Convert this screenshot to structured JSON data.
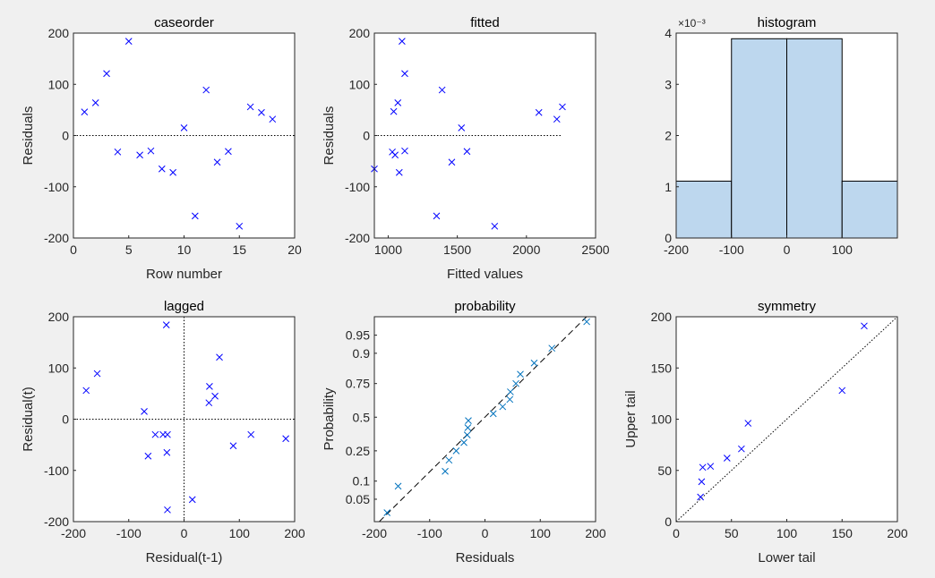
{
  "chart_data": [
    {
      "id": "caseorder",
      "type": "scatter",
      "title": "caseorder",
      "xlabel": "Row number",
      "ylabel": "Residuals",
      "xlim": [
        0,
        20
      ],
      "ylim": [
        -200,
        200
      ],
      "xticks": [
        0,
        5,
        10,
        15,
        20
      ],
      "yticks": [
        -200,
        -100,
        0,
        100,
        200
      ],
      "reference_line": {
        "type": "horizontal",
        "y": 0,
        "style": "dotted"
      },
      "x": [
        1,
        2,
        3,
        4,
        5,
        6,
        7,
        8,
        9,
        10,
        11,
        12,
        13,
        14,
        15,
        16,
        17,
        18
      ],
      "y": [
        46,
        64,
        121,
        -32,
        184,
        -38,
        -30,
        -65,
        -72,
        15,
        -157,
        89,
        -52,
        -31,
        -177,
        56,
        45,
        32
      ]
    },
    {
      "id": "fitted",
      "type": "scatter",
      "title": "fitted",
      "xlabel": "Fitted values",
      "ylabel": "Residuals",
      "xlim": [
        900,
        2500
      ],
      "ylim": [
        -200,
        200
      ],
      "xticks": [
        1000,
        1500,
        2000,
        2500
      ],
      "yticks": [
        -200,
        -100,
        0,
        100,
        200
      ],
      "reference_line": {
        "type": "horizontal",
        "y": 0,
        "x_range": [
          900,
          2260
        ],
        "style": "dotted"
      },
      "x": [
        890,
        1030,
        1040,
        1050,
        1070,
        1080,
        1100,
        1120,
        1120,
        1350,
        1390,
        1460,
        1530,
        1570,
        1770,
        2090,
        2220,
        2260
      ],
      "y": [
        -65,
        -32,
        47,
        -38,
        64,
        -72,
        184,
        121,
        -30,
        -157,
        89,
        -52,
        15,
        -31,
        -177,
        45,
        32,
        56
      ]
    },
    {
      "id": "histogram",
      "type": "bar",
      "title": "histogram",
      "axis_exponent": "×10⁻³",
      "xlim": [
        -200,
        200
      ],
      "ylim": [
        0,
        4
      ],
      "xticks": [
        -200,
        -100,
        0,
        100
      ],
      "yticks": [
        0,
        1,
        2,
        3,
        4
      ],
      "bin_edges": [
        -200,
        -100,
        0,
        100,
        200
      ],
      "values": [
        1.11,
        3.89,
        3.89,
        1.11
      ],
      "bar_color": "#bdd7ee"
    },
    {
      "id": "lagged",
      "type": "scatter",
      "title": "lagged",
      "xlabel": "Residual(t-1)",
      "ylabel": "Residual(t)",
      "xlim": [
        -200,
        200
      ],
      "ylim": [
        -200,
        200
      ],
      "xticks": [
        -200,
        -100,
        0,
        100,
        200
      ],
      "yticks": [
        -200,
        -100,
        0,
        100,
        200
      ],
      "reference_line": {
        "type": "crosshair",
        "x": 0,
        "y": 0,
        "style": "dotted"
      },
      "x": [
        -177,
        -157,
        -72,
        -65,
        -52,
        -38,
        -32,
        -31,
        -30,
        15,
        45,
        46,
        56,
        64,
        89,
        121,
        184,
        -30
      ],
      "y": [
        56,
        89,
        15,
        -72,
        -30,
        -30,
        184,
        -65,
        -177,
        -157,
        32,
        64,
        45,
        121,
        -52,
        -30,
        -38,
        -30
      ]
    },
    {
      "id": "probability",
      "type": "scatter",
      "title": "probability",
      "xlabel": "Residuals",
      "ylabel": "Probability",
      "xlim": [
        -200,
        200
      ],
      "yticks": [
        0.05,
        0.1,
        0.25,
        0.5,
        0.75,
        0.9,
        0.95
      ],
      "ytick_labels": [
        "0.05",
        "0.1",
        "0.25",
        "0.5",
        "0.75",
        "0.9",
        "0.95"
      ],
      "xticks": [
        -200,
        -100,
        0,
        100,
        200
      ],
      "reference_line": {
        "type": "normal-fit",
        "style": "dashed"
      },
      "x": [
        -177,
        -157,
        -72,
        -65,
        -52,
        -38,
        -32,
        -31,
        -30,
        15,
        32,
        45,
        46,
        56,
        64,
        89,
        121,
        184
      ],
      "y": [
        0.0278,
        0.0833,
        0.1389,
        0.1944,
        0.25,
        0.3056,
        0.3611,
        0.4167,
        0.4722,
        0.5278,
        0.5833,
        0.6389,
        0.6944,
        0.75,
        0.8056,
        0.8611,
        0.9167,
        0.9722
      ]
    },
    {
      "id": "symmetry",
      "type": "scatter",
      "title": "symmetry",
      "xlabel": "Lower tail",
      "ylabel": "Upper tail",
      "xlim": [
        0,
        200
      ],
      "ylim": [
        0,
        200
      ],
      "xticks": [
        0,
        50,
        100,
        150,
        200
      ],
      "yticks": [
        0,
        50,
        100,
        150,
        200
      ],
      "reference_line": {
        "type": "diagonal",
        "style": "dotted"
      },
      "x": [
        22,
        23,
        24,
        31,
        46,
        59,
        65,
        150,
        170
      ],
      "y": [
        24,
        39,
        53,
        54,
        62,
        71,
        96,
        128,
        191
      ]
    }
  ]
}
